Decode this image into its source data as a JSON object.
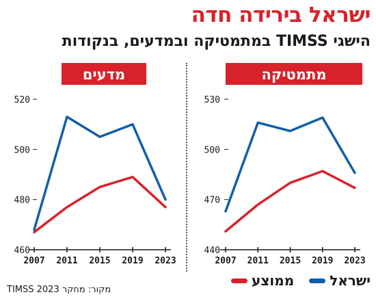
{
  "header": {
    "title": "ישראל בירידה חדה",
    "subtitle": "הישגי TIMSS במתמטיקה ובמדעים, בנקודות"
  },
  "legend": [
    {
      "label": "ישראל",
      "color": "#0f5fa8"
    },
    {
      "label": "ממוצע",
      "color": "#d8222b"
    }
  ],
  "source": "מקור: מחקר TIMSS 2023",
  "colors": {
    "israel": "#0f5fa8",
    "average": "#d8222b",
    "badge": "#d8222b"
  },
  "chart_data": [
    {
      "type": "line",
      "title": "מדעים",
      "categories": [
        "2007",
        "2011",
        "2015",
        "2019",
        "2023"
      ],
      "y_ticks": [
        460,
        480,
        500,
        520
      ],
      "ylim": [
        460,
        520
      ],
      "grid": false,
      "series": [
        {
          "name": "ישראל",
          "values": [
            468,
            513,
            505,
            510,
            480
          ]
        },
        {
          "name": "ממוצע",
          "values": [
            467,
            477,
            485,
            489,
            477
          ]
        }
      ]
    },
    {
      "type": "line",
      "title": "מתמטיקה",
      "categories": [
        "2007",
        "2011",
        "2015",
        "2019",
        "2023"
      ],
      "y_ticks": [
        440,
        470,
        500,
        530
      ],
      "ylim": [
        440,
        530
      ],
      "grid": false,
      "series": [
        {
          "name": "ישראל",
          "values": [
            463,
            516,
            511,
            519,
            486
          ]
        },
        {
          "name": "ממוצע",
          "values": [
            451,
            467,
            480,
            487,
            477
          ]
        }
      ]
    }
  ]
}
